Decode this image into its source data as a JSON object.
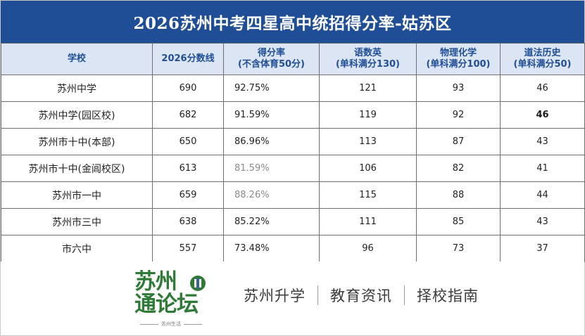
{
  "title": "2026苏州中考四星高中统招得分率-姑苏区",
  "table": {
    "headers": [
      {
        "line1": "学校",
        "line2": ""
      },
      {
        "line1": "2026分数线",
        "line2": ""
      },
      {
        "line1": "得分率",
        "line2": "(不含体育50分)"
      },
      {
        "line1": "语数英",
        "line2": "(单科满分130)"
      },
      {
        "line1": "物理化学",
        "line2": "(单科满分100)"
      },
      {
        "line1": "道法历史",
        "line2": "(单科满分50)"
      }
    ],
    "rows": [
      {
        "school": "苏州中学",
        "cutoff": "690",
        "rate": "92.75%",
        "cme": "121",
        "pc": "93",
        "mh": "46"
      },
      {
        "school": "苏州中学(园区校)",
        "cutoff": "682",
        "rate": "91.59%",
        "cme": "119",
        "pc": "92",
        "mh": "46"
      },
      {
        "school": "苏州市十中(本部)",
        "cutoff": "650",
        "rate": "86.96%",
        "cme": "113",
        "pc": "87",
        "mh": "43"
      },
      {
        "school": "苏州市十中(金阊校区)",
        "cutoff": "613",
        "rate": "81.59%",
        "cme": "106",
        "pc": "82",
        "mh": "41"
      },
      {
        "school": "苏州市一中",
        "cutoff": "659",
        "rate": "88.26%",
        "cme": "115",
        "pc": "88",
        "mh": "44"
      },
      {
        "school": "苏州市三中",
        "cutoff": "638",
        "rate": "85.22%",
        "cme": "111",
        "pc": "85",
        "mh": "43"
      },
      {
        "school": "市六中",
        "cutoff": "557",
        "rate": "73.48%",
        "cme": "96",
        "pc": "73",
        "mh": "37"
      }
    ]
  },
  "footer": {
    "logo_line1": "苏州",
    "logo_line2": "通论坛",
    "logo_tag": "苏州生活",
    "slogan": [
      "苏州升学",
      "教育资讯",
      "择校指南"
    ]
  },
  "colors": {
    "title_bg": "#1f4e96",
    "header_bg": "#dbe5f4",
    "header_text": "#1f4e96",
    "logo_green": "#2f7a36"
  },
  "icons": {
    "logo_mark": "book-mark-icon"
  }
}
